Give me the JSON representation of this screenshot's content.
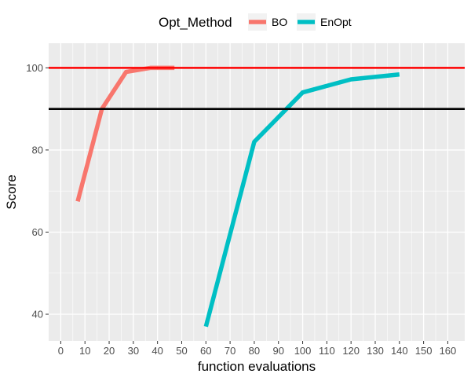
{
  "chart_data": {
    "type": "line",
    "xlabel": "function evaluations",
    "ylabel": "Score",
    "xlim": [
      -5,
      167
    ],
    "ylim": [
      33.5,
      106
    ],
    "x_ticks": [
      0,
      10,
      20,
      30,
      40,
      50,
      60,
      70,
      80,
      90,
      100,
      110,
      120,
      130,
      140,
      150,
      160
    ],
    "y_ticks": [
      40,
      60,
      80,
      100
    ],
    "grid": true,
    "legend": {
      "title": "Opt_Method",
      "position": "top"
    },
    "series": [
      {
        "name": "BO",
        "color": "#F8766D",
        "points": [
          {
            "x": 7,
            "y": 67.5
          },
          {
            "x": 17,
            "y": 90
          },
          {
            "x": 27,
            "y": 99
          },
          {
            "x": 37,
            "y": 100
          },
          {
            "x": 47,
            "y": 100
          }
        ]
      },
      {
        "name": "EnOpt",
        "color": "#00BFC4",
        "points": [
          {
            "x": 60,
            "y": 37
          },
          {
            "x": 80,
            "y": 82
          },
          {
            "x": 100,
            "y": 94
          },
          {
            "x": 120,
            "y": 97.2
          },
          {
            "x": 140,
            "y": 98.4
          }
        ]
      }
    ],
    "reference_lines": [
      {
        "y": 100,
        "color": "#FF0000"
      },
      {
        "y": 90,
        "color": "#000000"
      }
    ],
    "panel_background": "#EBEBEB",
    "grid_color": "#FFFFFF"
  }
}
